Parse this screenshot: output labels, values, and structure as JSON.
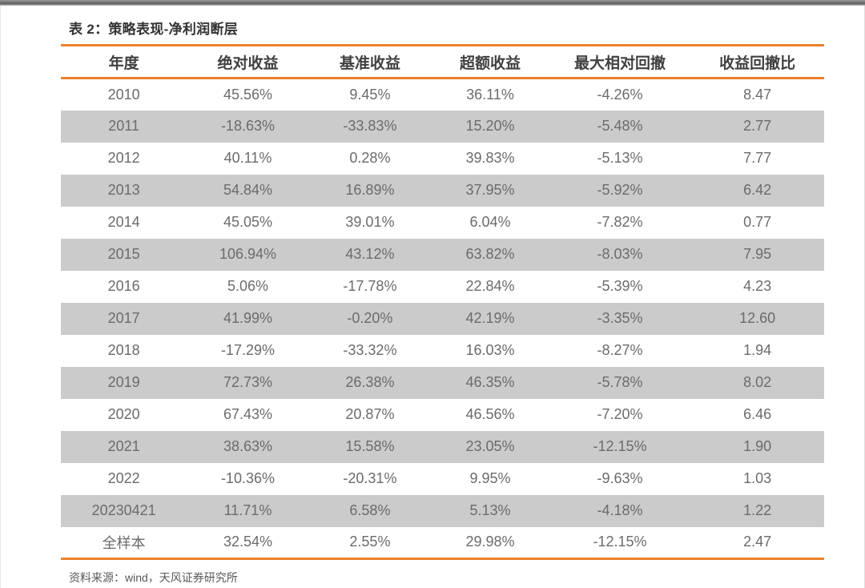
{
  "page": {
    "title": "表 2：策略表现-净利润断层",
    "source_note": "资料来源：wind，天风证券研究所",
    "accent_color": "#EE7F2D",
    "stripe_color": "#CBCBCB"
  },
  "table": {
    "columns": [
      "年度",
      "绝对收益",
      "基准收益",
      "超额收益",
      "最大相对回撤",
      "收益回撤比"
    ],
    "rows": [
      [
        "2010",
        "45.56%",
        "9.45%",
        "36.11%",
        "-4.26%",
        "8.47"
      ],
      [
        "2011",
        "-18.63%",
        "-33.83%",
        "15.20%",
        "-5.48%",
        "2.77"
      ],
      [
        "2012",
        "40.11%",
        "0.28%",
        "39.83%",
        "-5.13%",
        "7.77"
      ],
      [
        "2013",
        "54.84%",
        "16.89%",
        "37.95%",
        "-5.92%",
        "6.42"
      ],
      [
        "2014",
        "45.05%",
        "39.01%",
        "6.04%",
        "-7.82%",
        "0.77"
      ],
      [
        "2015",
        "106.94%",
        "43.12%",
        "63.82%",
        "-8.03%",
        "7.95"
      ],
      [
        "2016",
        "5.06%",
        "-17.78%",
        "22.84%",
        "-5.39%",
        "4.23"
      ],
      [
        "2017",
        "41.99%",
        "-0.20%",
        "42.19%",
        "-3.35%",
        "12.60"
      ],
      [
        "2018",
        "-17.29%",
        "-33.32%",
        "16.03%",
        "-8.27%",
        "1.94"
      ],
      [
        "2019",
        "72.73%",
        "26.38%",
        "46.35%",
        "-5.78%",
        "8.02"
      ],
      [
        "2020",
        "67.43%",
        "20.87%",
        "46.56%",
        "-7.20%",
        "6.46"
      ],
      [
        "2021",
        "38.63%",
        "15.58%",
        "23.05%",
        "-12.15%",
        "1.90"
      ],
      [
        "2022",
        "-10.36%",
        "-20.31%",
        "9.95%",
        "-9.63%",
        "1.03"
      ],
      [
        "20230421",
        "11.71%",
        "6.58%",
        "5.13%",
        "-4.18%",
        "1.22"
      ],
      [
        "全样本",
        "32.54%",
        "2.55%",
        "29.98%",
        "-12.15%",
        "2.47"
      ]
    ]
  }
}
